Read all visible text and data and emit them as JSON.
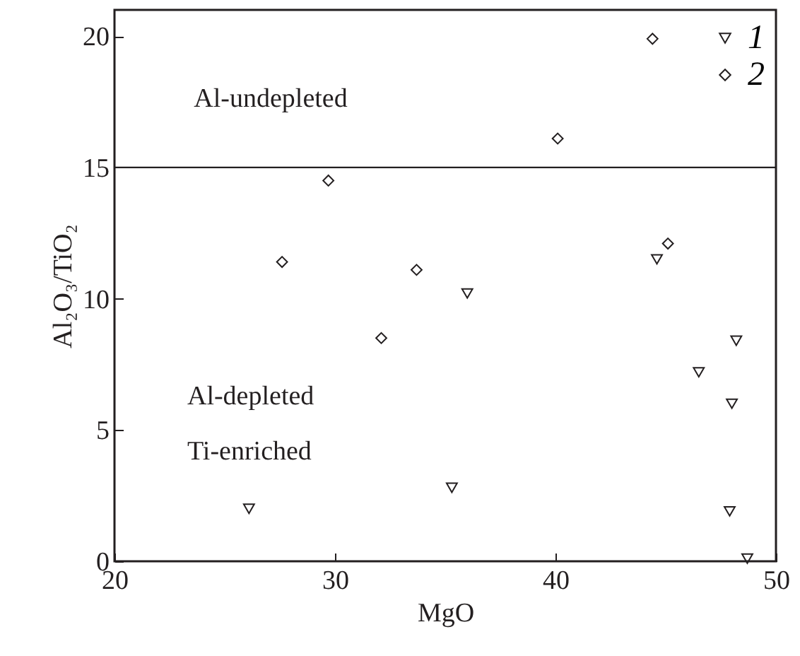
{
  "chart_data": {
    "type": "scatter",
    "xlabel": "MgO",
    "ylabel": "Al₂O₃/TiO₂",
    "xlim": [
      20,
      50
    ],
    "xticks": [
      20,
      30,
      40,
      50
    ],
    "ylim": [
      0,
      21
    ],
    "yticks": [
      0,
      5,
      10,
      15,
      20
    ],
    "grid": false,
    "legend": "top right",
    "series": [
      {
        "name": "1",
        "color": "#231f20",
        "marker": "triangle",
        "x": [
          26.1,
          35.3,
          36.0,
          44.6,
          46.5,
          48.2,
          48.0,
          47.9,
          48.7
        ],
        "values": [
          2.0,
          2.8,
          10.2,
          11.5,
          7.2,
          8.4,
          6.0,
          1.9,
          0.1
        ]
      },
      {
        "name": "2",
        "color": "#231f20",
        "marker": "diamond",
        "x": [
          27.6,
          29.7,
          32.1,
          33.7,
          40.1,
          44.4,
          45.1
        ],
        "values": [
          11.4,
          14.5,
          8.5,
          11.1,
          16.1,
          19.9,
          12.1
        ]
      }
    ],
    "ref_lines": [
      {
        "axis": "y",
        "value": 15,
        "color": "#231f20"
      }
    ],
    "annotations": [
      "Al-undepleted",
      "Al-depleted",
      "Ti-enriched"
    ]
  }
}
